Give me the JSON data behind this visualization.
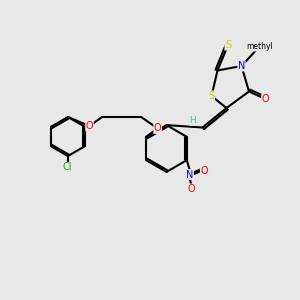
{
  "bg_color": "#e8e8e8",
  "atom_colors": {
    "C": "#000000",
    "H": "#6aacac",
    "N": "#0000ff",
    "O": "#ff0000",
    "S": "#cccc00",
    "Cl": "#00aa00"
  },
  "bond_color": "#000000"
}
